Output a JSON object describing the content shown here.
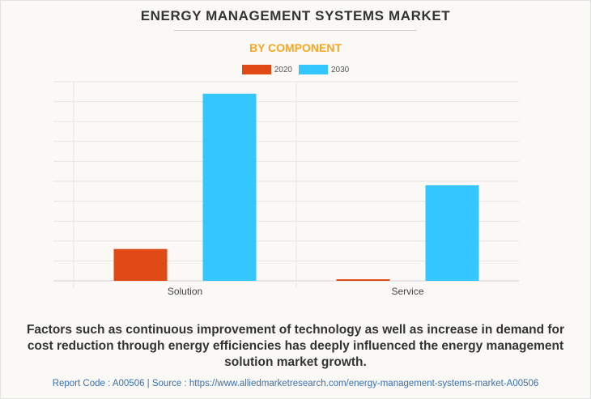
{
  "chart_data": {
    "type": "bar",
    "title": "ENERGY MANAGEMENT SYSTEMS MARKET",
    "subtitle": "BY COMPONENT",
    "categories": [
      "Solution",
      "Service"
    ],
    "series": [
      {
        "name": "2020",
        "color": "#e04a16",
        "values": [
          1.6,
          0.08
        ]
      },
      {
        "name": "2030",
        "color": "#33c6ff",
        "values": [
          9.4,
          4.8
        ]
      }
    ],
    "xlabel": "",
    "ylabel": "",
    "ylim": [
      0,
      10
    ],
    "y_units_note": "relative gridline units; no axis tick labels shown",
    "grid": true,
    "legend": "top-center"
  },
  "description": "Factors such as continuous improvement of technology as well as increase in demand for cost reduction through energy efficiencies has deeply influenced the energy management solution market growth.",
  "footer": {
    "text": "Report Code : A00506  |  Source : https://www.alliedmarketresearch.com/energy-management-systems-market-A00506"
  }
}
